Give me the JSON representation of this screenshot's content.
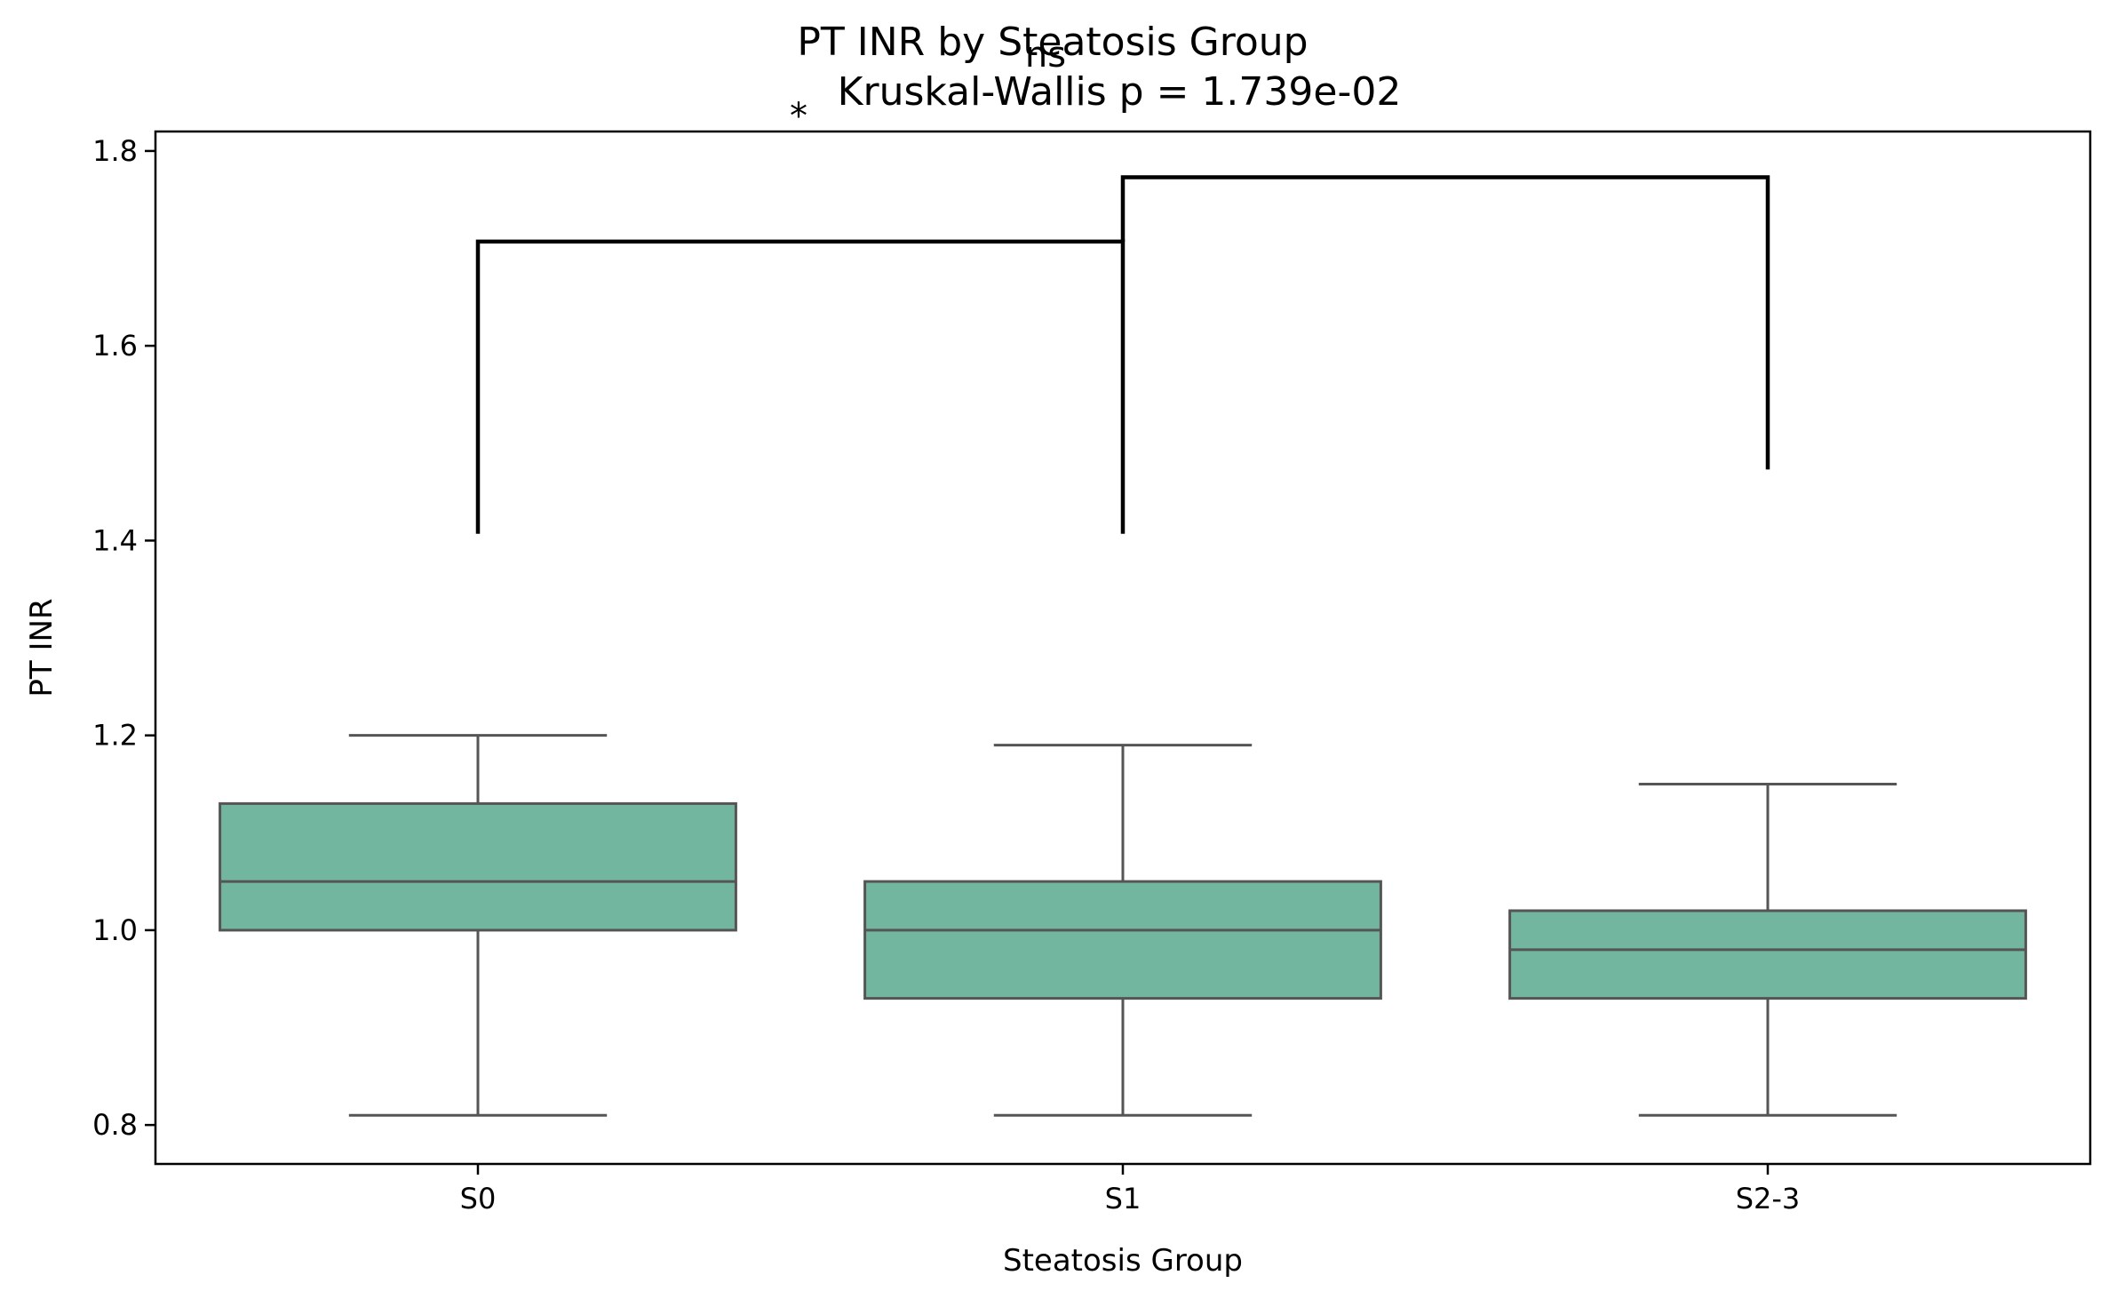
{
  "chart_data": {
    "type": "box",
    "title": "PT INR by Steatosis Group",
    "subtitle": "Kruskal-Wallis p = 1.739e-02",
    "xlabel": "Steatosis Group",
    "ylabel": "PT INR",
    "categories": [
      "S0",
      "S1",
      "S2-3"
    ],
    "ylim": [
      0.76,
      1.82
    ],
    "yticks": [
      0.8,
      1.0,
      1.2,
      1.4,
      1.6,
      1.8
    ],
    "ytick_labels": [
      "0.8",
      "1.0",
      "1.2",
      "1.4",
      "1.6",
      "1.8"
    ],
    "grid": false,
    "box_color": "#73b6a0",
    "line_color": "#555555",
    "boxes": [
      {
        "category": "S0",
        "whisker_low": 0.81,
        "q1": 1.0,
        "median": 1.05,
        "q3": 1.13,
        "whisker_high": 1.2
      },
      {
        "category": "S1",
        "whisker_low": 0.81,
        "q1": 0.93,
        "median": 1.0,
        "q3": 1.05,
        "whisker_high": 1.19
      },
      {
        "category": "S2-3",
        "whisker_low": 0.81,
        "q1": 0.93,
        "median": 0.98,
        "q3": 1.02,
        "whisker_high": 1.15
      }
    ],
    "brackets": [
      {
        "groups": [
          "S0",
          "S1"
        ],
        "y": 1.707,
        "left_end": 1.407,
        "right_end": 1.407,
        "label": "*"
      },
      {
        "groups": [
          "S1",
          "S2-3"
        ],
        "y": 1.773,
        "left_end": 1.707,
        "right_end": 1.473,
        "label": "ns"
      }
    ]
  }
}
